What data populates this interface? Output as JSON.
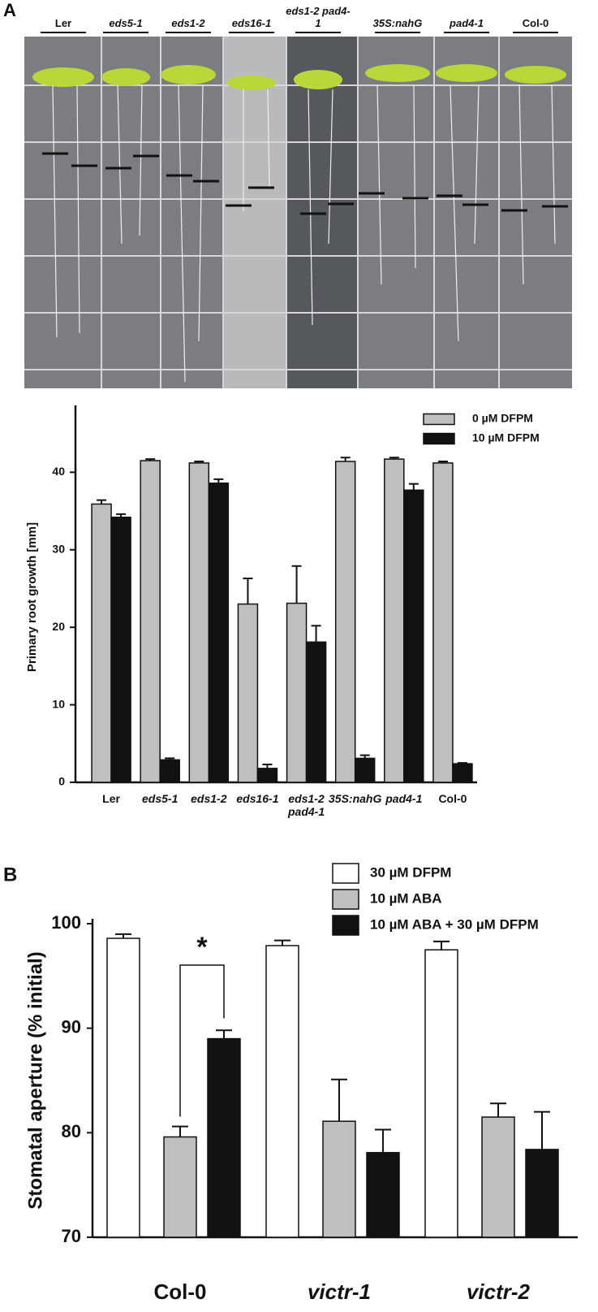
{
  "panel_labels": [
    "A",
    "B"
  ],
  "photo": {
    "labels": [
      "Ler",
      "eds5-1",
      "eds1-2",
      "eds16-1",
      "eds1-2 pad4-1",
      "35S:nahG",
      "pad4-1",
      "Col-0"
    ]
  },
  "chart_data": [
    {
      "type": "bar",
      "y_label": "Primary root growth [mm]",
      "categories": [
        "Ler",
        "eds5-1",
        "eds1-2",
        "eds16-1",
        "eds1-2 pad4-1",
        "35S:nahG",
        "pad4-1",
        "Col-0"
      ],
      "series": [
        {
          "name": "0 µM DFPM",
          "color": "#bfbfbf",
          "values": [
            35.9,
            41.5,
            41.2,
            23.0,
            23.1,
            41.4,
            41.7,
            41.2
          ],
          "errors": [
            0.5,
            0.2,
            0.2,
            3.3,
            4.8,
            0.5,
            0.2,
            0.2
          ]
        },
        {
          "name": "10 µM DFPM",
          "color": "#111111",
          "values": [
            34.2,
            2.9,
            38.6,
            1.8,
            18.1,
            3.1,
            37.7,
            2.4
          ],
          "errors": [
            0.4,
            0.2,
            0.5,
            0.5,
            2.1,
            0.4,
            0.8,
            0.1
          ]
        }
      ],
      "ylim": [
        0,
        48
      ],
      "yticks": [
        0,
        10,
        20,
        30,
        40
      ],
      "grid": false,
      "legend": "upper right"
    },
    {
      "type": "bar",
      "y_label": "Stomatal aperture (% initial)",
      "categories": [
        "Col-0",
        "victr-1",
        "victr-2"
      ],
      "series": [
        {
          "name": "30 µM DFPM",
          "color": "#ffffff",
          "values": [
            98.6,
            97.9,
            97.5
          ],
          "errors": [
            0.4,
            0.5,
            0.8
          ]
        },
        {
          "name": "10 µM ABA",
          "color": "#bfbfbf",
          "values": [
            79.6,
            81.1,
            81.5
          ],
          "errors": [
            1.0,
            4.0,
            1.3
          ]
        },
        {
          "name": "10 µM ABA + 30 µM DFPM",
          "color": "#111111",
          "values": [
            89.0,
            78.1,
            78.4
          ],
          "errors": [
            0.8,
            2.2,
            3.6
          ]
        }
      ],
      "ylim": [
        70,
        100
      ],
      "yticks": [
        70,
        80,
        90,
        100
      ],
      "grid": false,
      "legend": "upper right",
      "annotation": "*"
    }
  ]
}
